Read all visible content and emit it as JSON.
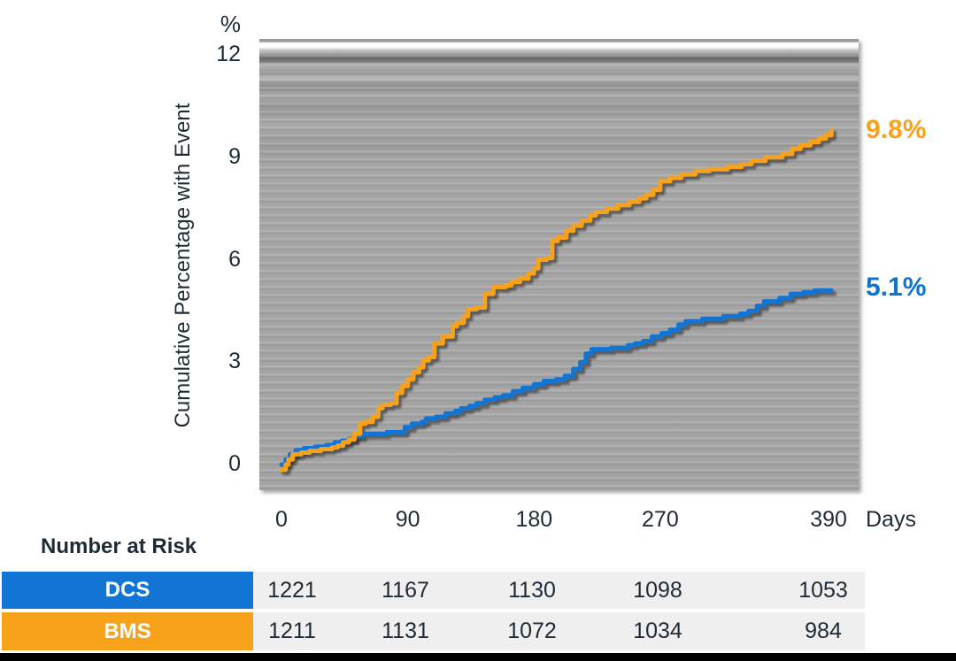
{
  "chart_data": {
    "type": "line",
    "subtype": "step-after-cumulative-incidence",
    "title": "",
    "xlabel": "Days",
    "ylabel": "Cumulative Percentage with Event",
    "y_unit": "%",
    "x_ticks": [
      0,
      90,
      180,
      270,
      390
    ],
    "y_ticks": [
      0,
      3,
      6,
      9,
      12
    ],
    "xlim": [
      0,
      413
    ],
    "ylim": [
      -0.7,
      12.5
    ],
    "grid": false,
    "legend_position": "none",
    "series": [
      {
        "name": "DCS",
        "color": "#1375D3",
        "end_label": "5.1%",
        "final_value": 5.1,
        "points": [
          [
            0,
            0
          ],
          [
            3,
            0.15
          ],
          [
            6,
            0.3
          ],
          [
            10,
            0.42
          ],
          [
            16,
            0.48
          ],
          [
            24,
            0.52
          ],
          [
            32,
            0.57
          ],
          [
            38,
            0.65
          ],
          [
            43,
            0.7
          ],
          [
            48,
            0.75
          ],
          [
            52,
            0.83
          ],
          [
            58,
            0.9
          ],
          [
            75,
            0.95
          ],
          [
            88,
            1.1
          ],
          [
            93,
            1.2
          ],
          [
            100,
            1.25
          ],
          [
            103,
            1.35
          ],
          [
            110,
            1.4
          ],
          [
            117,
            1.5
          ],
          [
            124,
            1.57
          ],
          [
            128,
            1.65
          ],
          [
            134,
            1.72
          ],
          [
            139,
            1.8
          ],
          [
            145,
            1.9
          ],
          [
            152,
            1.97
          ],
          [
            158,
            2.03
          ],
          [
            165,
            2.15
          ],
          [
            172,
            2.25
          ],
          [
            180,
            2.35
          ],
          [
            187,
            2.45
          ],
          [
            196,
            2.5
          ],
          [
            202,
            2.6
          ],
          [
            208,
            2.8
          ],
          [
            213,
            3.0
          ],
          [
            217,
            3.25
          ],
          [
            221,
            3.38
          ],
          [
            235,
            3.42
          ],
          [
            247,
            3.5
          ],
          [
            252,
            3.55
          ],
          [
            258,
            3.62
          ],
          [
            264,
            3.75
          ],
          [
            271,
            3.85
          ],
          [
            277,
            3.95
          ],
          [
            283,
            4.1
          ],
          [
            288,
            4.2
          ],
          [
            300,
            4.27
          ],
          [
            315,
            4.35
          ],
          [
            327,
            4.42
          ],
          [
            333,
            4.5
          ],
          [
            339,
            4.65
          ],
          [
            344,
            4.78
          ],
          [
            355,
            4.88
          ],
          [
            363,
            5.0
          ],
          [
            372,
            5.05
          ],
          [
            380,
            5.1
          ],
          [
            392,
            5.1
          ]
        ]
      },
      {
        "name": "BMS",
        "color": "#F8A21C",
        "end_label": "9.8%",
        "final_value": 9.8,
        "points": [
          [
            0,
            -0.15
          ],
          [
            3,
            0.0
          ],
          [
            5,
            0.15
          ],
          [
            8,
            0.3
          ],
          [
            14,
            0.35
          ],
          [
            20,
            0.4
          ],
          [
            28,
            0.45
          ],
          [
            36,
            0.5
          ],
          [
            40,
            0.55
          ],
          [
            44,
            0.65
          ],
          [
            48,
            0.73
          ],
          [
            52,
            0.9
          ],
          [
            56,
            1.2
          ],
          [
            60,
            1.25
          ],
          [
            65,
            1.4
          ],
          [
            69,
            1.65
          ],
          [
            72,
            1.75
          ],
          [
            78,
            1.8
          ],
          [
            82,
            2.1
          ],
          [
            86,
            2.3
          ],
          [
            90,
            2.5
          ],
          [
            94,
            2.7
          ],
          [
            98,
            2.85
          ],
          [
            101,
            3.05
          ],
          [
            105,
            3.15
          ],
          [
            109,
            3.55
          ],
          [
            115,
            3.75
          ],
          [
            122,
            4.05
          ],
          [
            125,
            4.15
          ],
          [
            130,
            4.35
          ],
          [
            133,
            4.55
          ],
          [
            139,
            4.6
          ],
          [
            145,
            5.0
          ],
          [
            151,
            5.2
          ],
          [
            160,
            5.25
          ],
          [
            164,
            5.35
          ],
          [
            170,
            5.45
          ],
          [
            176,
            5.6
          ],
          [
            180,
            5.75
          ],
          [
            183,
            6.0
          ],
          [
            189,
            6.05
          ],
          [
            193,
            6.55
          ],
          [
            197,
            6.65
          ],
          [
            203,
            6.85
          ],
          [
            208,
            7.0
          ],
          [
            214,
            7.15
          ],
          [
            220,
            7.3
          ],
          [
            224,
            7.4
          ],
          [
            232,
            7.5
          ],
          [
            240,
            7.6
          ],
          [
            248,
            7.7
          ],
          [
            255,
            7.8
          ],
          [
            260,
            7.9
          ],
          [
            265,
            8.05
          ],
          [
            270,
            8.3
          ],
          [
            277,
            8.4
          ],
          [
            285,
            8.5
          ],
          [
            295,
            8.6
          ],
          [
            305,
            8.65
          ],
          [
            318,
            8.72
          ],
          [
            328,
            8.8
          ],
          [
            335,
            8.9
          ],
          [
            345,
            9.0
          ],
          [
            357,
            9.1
          ],
          [
            364,
            9.25
          ],
          [
            370,
            9.35
          ],
          [
            377,
            9.45
          ],
          [
            383,
            9.55
          ],
          [
            388,
            9.65
          ],
          [
            392,
            9.8
          ]
        ]
      }
    ],
    "number_at_risk": {
      "title": "Number at Risk",
      "days": [
        0,
        90,
        180,
        270,
        390
      ],
      "rows": [
        {
          "label": "DCS",
          "color": "#1375D3",
          "values": [
            1221,
            1167,
            1130,
            1098,
            1053
          ]
        },
        {
          "label": "BMS",
          "color": "#F8A21C",
          "values": [
            1211,
            1131,
            1072,
            1034,
            984
          ]
        }
      ]
    },
    "colors": {
      "dcs_blue": "#1375D3",
      "bms_orange": "#F8A21C",
      "dcs_label_blue": "#0E74D2",
      "bms_label_orange": "#F9A11B",
      "axis_text": "#1E2B36",
      "table_cell_bg": "#EFEFEF",
      "plot_bg_gray": "#A3A3A3",
      "footer_bar": "#000000"
    }
  }
}
